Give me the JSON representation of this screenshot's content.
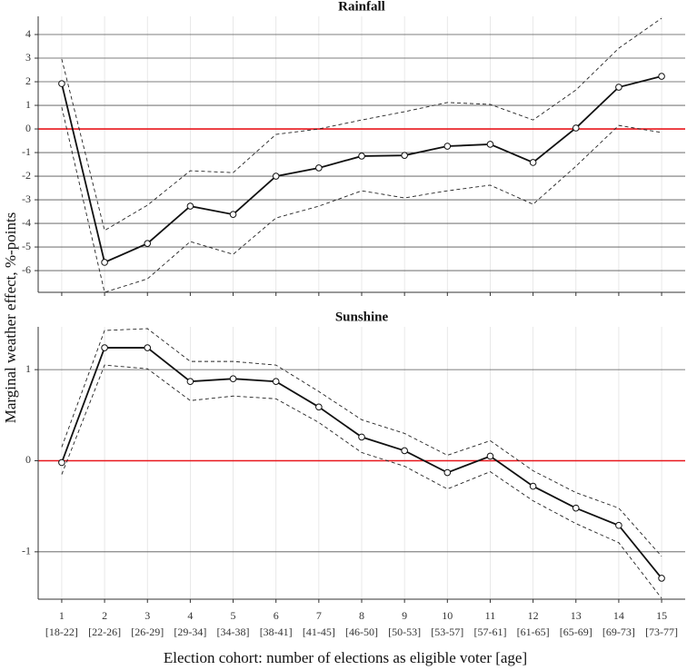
{
  "chart_data": [
    {
      "type": "line",
      "title": "Rainfall",
      "ylabel": "Marginal weather effect, %-points",
      "x": [
        1,
        2,
        3,
        4,
        5,
        6,
        7,
        8,
        9,
        10,
        11,
        12,
        13,
        14,
        15
      ],
      "xlim": [
        0.45,
        15.55
      ],
      "xticks": [
        1,
        2,
        3,
        4,
        5,
        6,
        7,
        8,
        9,
        10,
        11,
        12,
        13,
        14,
        15
      ],
      "ylim": [
        -6.92,
        4.77
      ],
      "yticks": [
        -6,
        -5,
        -4,
        -3,
        -2,
        -1,
        0,
        1,
        2,
        3,
        4
      ],
      "grid": true,
      "reference_line": {
        "value": 0,
        "color": "#e8161b"
      },
      "series": [
        {
          "color": "#111111",
          "style": "solid",
          "markers": true,
          "values": [
            1.92,
            -5.65,
            -4.85,
            -3.27,
            -3.62,
            -2.0,
            -1.65,
            -1.15,
            -1.12,
            -0.73,
            -0.65,
            -1.42,
            0.04,
            1.77,
            2.23
          ]
        },
        {
          "color": "#222222",
          "style": "dashed",
          "markers": false,
          "values": [
            2.96,
            -4.3,
            -3.23,
            -1.77,
            -1.85,
            -0.23,
            0,
            0.38,
            0.73,
            1.12,
            1.04,
            0.38,
            1.65,
            3.42,
            4.69
          ]
        },
        {
          "color": "#222222",
          "style": "dashed",
          "markers": false,
          "values": [
            0.92,
            -6.92,
            -6.35,
            -4.77,
            -5.31,
            -3.77,
            -3.27,
            -2.62,
            -2.92,
            -2.62,
            -2.38,
            -3.19,
            -1.58,
            0.15,
            -0.15
          ]
        }
      ]
    },
    {
      "type": "line",
      "title": "Sunshine",
      "xlabel": "Election cohort: number of elections as eligible voter [age]",
      "x": [
        1,
        2,
        3,
        4,
        5,
        6,
        7,
        8,
        9,
        10,
        11,
        12,
        13,
        14,
        15
      ],
      "xlim": [
        0.45,
        15.55
      ],
      "xticks": [
        1,
        2,
        3,
        4,
        5,
        6,
        7,
        8,
        9,
        10,
        11,
        12,
        13,
        14,
        15
      ],
      "xtick_ages": [
        "[18-22]",
        "[22-26]",
        "[26-29]",
        "[29-34]",
        "[34-38]",
        "[38-41]",
        "[41-45]",
        "[46-50]",
        "[50-53]",
        "[53-57]",
        "[57-61]",
        "[61-65]",
        "[65-69]",
        "[69-73]",
        "[73-77]"
      ],
      "ylim": [
        -1.52,
        1.47
      ],
      "yticks": [
        -1,
        0,
        1
      ],
      "grid": true,
      "reference_line": {
        "value": 0,
        "color": "#e8161b"
      },
      "series": [
        {
          "color": "#111111",
          "style": "solid",
          "markers": true,
          "values": [
            -0.02,
            1.24,
            1.24,
            0.87,
            0.9,
            0.87,
            0.59,
            0.26,
            0.11,
            -0.13,
            0.05,
            -0.28,
            -0.52,
            -0.71,
            -1.29
          ]
        },
        {
          "color": "#222222",
          "style": "dashed",
          "markers": false,
          "values": [
            0.15,
            1.43,
            1.45,
            1.09,
            1.09,
            1.05,
            0.76,
            0.45,
            0.3,
            0.06,
            0.22,
            -0.11,
            -0.35,
            -0.52,
            -1.05
          ]
        },
        {
          "color": "#222222",
          "style": "dashed",
          "markers": false,
          "values": [
            -0.15,
            1.05,
            1.01,
            0.66,
            0.71,
            0.68,
            0.42,
            0.09,
            -0.06,
            -0.31,
            -0.12,
            -0.44,
            -0.69,
            -0.9,
            -1.51
          ]
        }
      ]
    }
  ]
}
